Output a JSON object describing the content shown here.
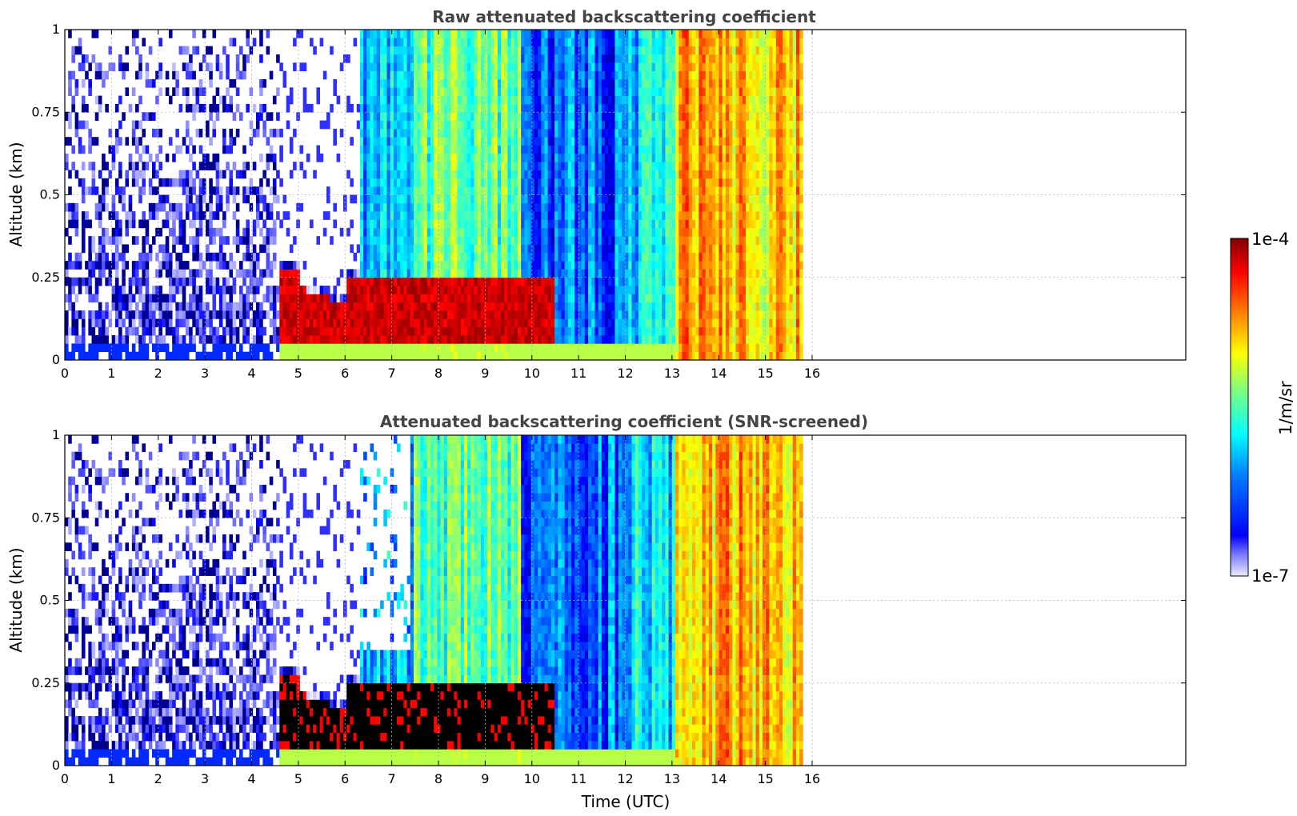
{
  "colors": {
    "jet": [
      "#00007f",
      "#0000ff",
      "#007fff",
      "#00ffff",
      "#7fff7f",
      "#ffff00",
      "#ff7f00",
      "#ff0000",
      "#7f0000"
    ],
    "low": "#ececff",
    "screened_high": "#000000",
    "grid": "#b0b0b0"
  },
  "colorbar": {
    "label": "1/m/sr",
    "max_label": "1e-4",
    "min_label": "1e-7",
    "scale": "log"
  },
  "x_axis_label": "Time (UTC)",
  "chart_data": [
    {
      "type": "heatmap",
      "title": "Raw attenuated backscattering coefficient",
      "xlabel": "",
      "ylabel": "Altitude (km)",
      "xlim": [
        0,
        24
      ],
      "ylim": [
        0,
        1
      ],
      "x_ticks": [
        "0",
        "1",
        "2",
        "3",
        "4",
        "5",
        "6",
        "7",
        "8",
        "9",
        "10",
        "11",
        "12",
        "13",
        "14",
        "15",
        "16"
      ],
      "y_ticks": [
        "0",
        "0.25",
        "0.5",
        "0.75",
        "1"
      ],
      "data_end_time": 15.8,
      "screened": false,
      "grid": true
    },
    {
      "type": "heatmap",
      "title": "Attenuated backscattering coefficient (SNR-screened)",
      "xlabel": "Time (UTC)",
      "ylabel": "Altitude (km)",
      "xlim": [
        0,
        24
      ],
      "ylim": [
        0,
        1
      ],
      "x_ticks": [
        "0",
        "1",
        "2",
        "3",
        "4",
        "5",
        "6",
        "7",
        "8",
        "9",
        "10",
        "11",
        "12",
        "13",
        "14",
        "15",
        "16"
      ],
      "y_ticks": [
        "0",
        "0.25",
        "0.5",
        "0.75",
        "1"
      ],
      "data_end_time": 15.8,
      "screened": true,
      "grid": true
    }
  ]
}
